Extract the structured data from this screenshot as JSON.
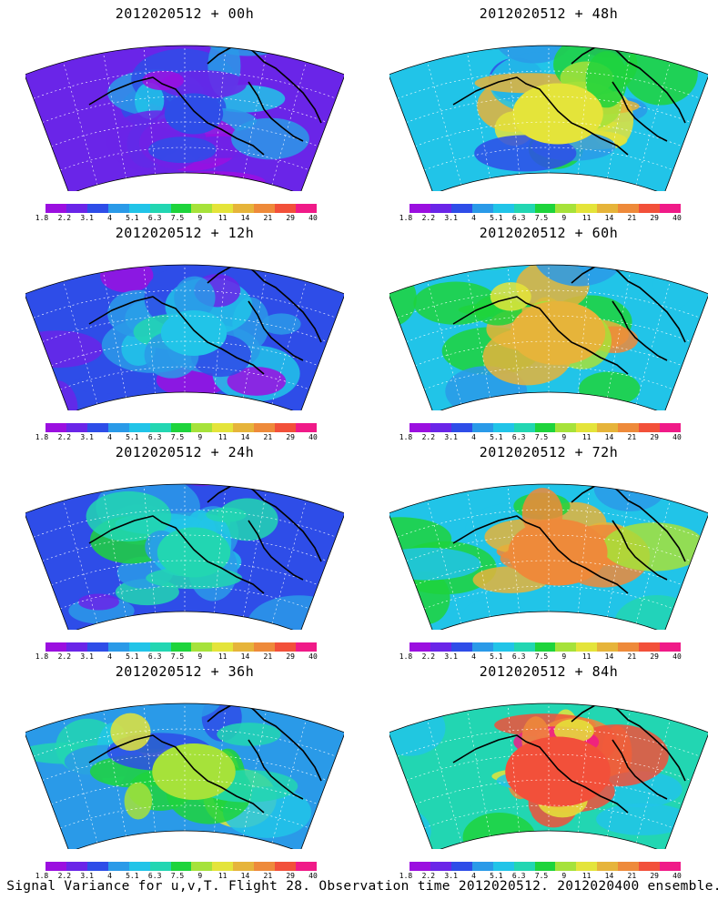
{
  "figure": {
    "caption": "Signal Variance for u,v,T. Flight 28. Observation time 2012020512. 2012020400 ensemble."
  },
  "colorbar": {
    "tick_labels": [
      "1.8",
      "2.2",
      "3.1",
      "4",
      "5.1",
      "6.3",
      "7.5",
      "9",
      "11",
      "14",
      "21",
      "29",
      "40"
    ],
    "colors": [
      "#9b0fe0",
      "#6a25e8",
      "#2e4de8",
      "#2a9ae8",
      "#21c4e8",
      "#22d6b2",
      "#1ed43c",
      "#a6e23a",
      "#e4e43a",
      "#e6b43a",
      "#ee8a3a",
      "#f2503a",
      "#f01a88"
    ]
  },
  "panels": [
    {
      "title": "2012020512 + 00h",
      "level": 0.18
    },
    {
      "title": "2012020512 + 48h",
      "level": 0.62
    },
    {
      "title": "2012020512 + 12h",
      "level": 0.28
    },
    {
      "title": "2012020512 + 60h",
      "level": 0.68
    },
    {
      "title": "2012020512 + 24h",
      "level": 0.38
    },
    {
      "title": "2012020512 + 72h",
      "level": 0.74
    },
    {
      "title": "2012020512 + 36h",
      "level": 0.52
    },
    {
      "title": "2012020512 + 84h",
      "level": 0.82
    }
  ]
}
